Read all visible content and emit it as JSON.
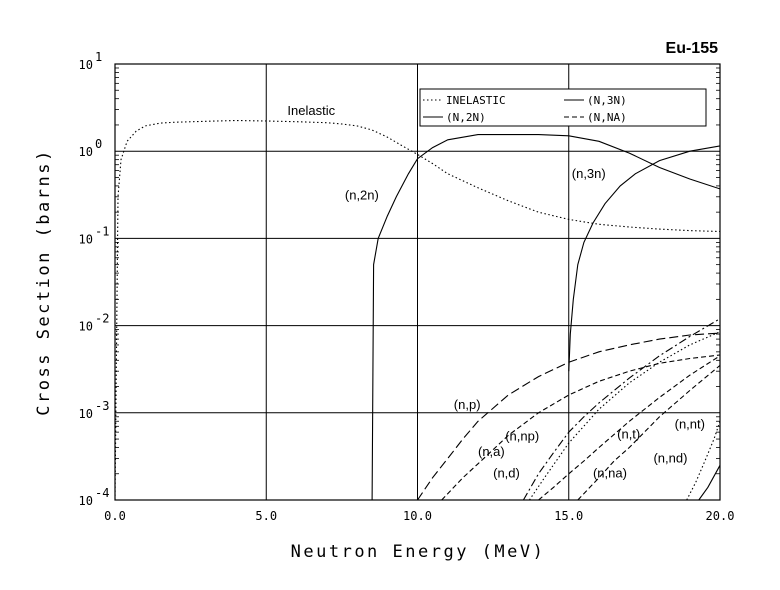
{
  "chart_data": {
    "type": "line",
    "title": "Eu-155",
    "xlabel": "Neutron Energy (MeV)",
    "ylabel": "Cross Section (barns)",
    "xlim": [
      0,
      20
    ],
    "ylim": [
      0.0001,
      10
    ],
    "yscale": "log",
    "grid": true,
    "x_ticks": [
      "0.0",
      "5.0",
      "10.0",
      "15.0",
      "20.0"
    ],
    "y_ticks": [
      {
        "base": "10",
        "exp": "1"
      },
      {
        "base": "10",
        "exp": "0"
      },
      {
        "base": "10",
        "exp": "-1"
      },
      {
        "base": "10",
        "exp": "-2"
      },
      {
        "base": "10",
        "exp": "-3"
      },
      {
        "base": "10",
        "exp": "-4"
      }
    ],
    "legend": {
      "position": "top-right",
      "entries": [
        "INELASTIC",
        "(N,3N)",
        "(N,2N)",
        "(N,NA)"
      ]
    },
    "series": [
      {
        "name": "INELASTIC",
        "style": "dotted",
        "x": [
          0.0,
          0.1,
          0.2,
          0.4,
          0.7,
          1.0,
          1.5,
          2.0,
          3.0,
          4.0,
          5.0,
          6.0,
          7.0,
          7.5,
          8.0,
          8.5,
          9.0,
          9.5,
          10.0,
          10.5,
          11.0,
          12.0,
          13.0,
          14.0,
          15.0,
          16.0,
          17.0,
          18.0,
          19.0,
          20.0
        ],
        "y": [
          0.0001,
          0.3,
          0.8,
          1.3,
          1.7,
          1.95,
          2.1,
          2.15,
          2.2,
          2.25,
          2.22,
          2.18,
          2.12,
          2.05,
          1.95,
          1.75,
          1.45,
          1.15,
          0.92,
          0.72,
          0.55,
          0.38,
          0.27,
          0.2,
          0.165,
          0.145,
          0.135,
          0.128,
          0.123,
          0.12
        ]
      },
      {
        "name": "(N,2N)",
        "style": "solid",
        "x": [
          8.5,
          8.55,
          8.7,
          9.0,
          9.3,
          9.7,
          10.0,
          10.5,
          11.0,
          12.0,
          13.0,
          14.0,
          15.0,
          16.0,
          17.0,
          18.0,
          19.0,
          20.0
        ],
        "y": [
          0.0001,
          0.05,
          0.1,
          0.18,
          0.3,
          0.55,
          0.82,
          1.1,
          1.35,
          1.55,
          1.55,
          1.55,
          1.5,
          1.3,
          0.95,
          0.65,
          0.48,
          0.37
        ]
      },
      {
        "name": "(N,3N)",
        "style": "solid",
        "x": [
          15.0,
          15.05,
          15.15,
          15.3,
          15.5,
          15.8,
          16.2,
          16.7,
          17.2,
          18.0,
          19.0,
          20.0
        ],
        "y": [
          0.003,
          0.008,
          0.02,
          0.05,
          0.09,
          0.15,
          0.25,
          0.4,
          0.55,
          0.78,
          1.0,
          1.15
        ]
      },
      {
        "name": "(N,NA)",
        "style": "dashed",
        "x": [
          14.0,
          14.5,
          15.0,
          15.5,
          16.0,
          17.0,
          18.0,
          19.0,
          20.0
        ],
        "y": [
          0.0001,
          0.00014,
          0.0002,
          0.00028,
          0.0004,
          0.0008,
          0.0015,
          0.0027,
          0.0045
        ]
      },
      {
        "name": "(n,p)",
        "style": "long-dash",
        "x": [
          10.0,
          10.5,
          11.0,
          11.5,
          12.0,
          13.0,
          14.0,
          15.0,
          16.0,
          17.0,
          18.0,
          19.0,
          20.0
        ],
        "y": [
          0.0001,
          0.00018,
          0.0003,
          0.0005,
          0.0008,
          0.0016,
          0.0026,
          0.0038,
          0.005,
          0.006,
          0.007,
          0.0078,
          0.0082
        ]
      },
      {
        "name": "(n,a)",
        "style": "dashed",
        "x": [
          10.8,
          11.5,
          12.0,
          13.0,
          14.0,
          15.0,
          16.0,
          17.0,
          18.0,
          19.0,
          20.0
        ],
        "y": [
          0.0001,
          0.00018,
          0.00026,
          0.00055,
          0.001,
          0.0016,
          0.0023,
          0.003,
          0.0037,
          0.0042,
          0.0046
        ]
      },
      {
        "name": "(n,np)",
        "style": "dash-dot",
        "x": [
          13.5,
          14.0,
          14.5,
          15.0,
          15.5,
          16.0,
          17.0,
          18.0,
          19.0,
          20.0
        ],
        "y": [
          0.0001,
          0.0002,
          0.00035,
          0.0006,
          0.0009,
          0.0013,
          0.0025,
          0.0045,
          0.0075,
          0.012
        ]
      },
      {
        "name": "(n,d)",
        "style": "dotted",
        "x": [
          13.7,
          14.2,
          15.0,
          16.0,
          17.0,
          18.0,
          19.0,
          20.0
        ],
        "y": [
          0.0001,
          0.00018,
          0.00045,
          0.0011,
          0.0022,
          0.0038,
          0.006,
          0.0085
        ]
      },
      {
        "name": "(n,t)",
        "style": "dashed",
        "x": [
          15.3,
          16.0,
          16.5,
          17.0,
          18.0,
          19.0,
          20.0
        ],
        "y": [
          0.0001,
          0.00018,
          0.00028,
          0.0004,
          0.0009,
          0.0018,
          0.0035
        ]
      },
      {
        "name": "(n,nt)",
        "style": "dotted",
        "x": [
          18.9,
          19.2,
          19.5,
          19.8,
          20.0
        ],
        "y": [
          0.0001,
          0.00016,
          0.00028,
          0.0005,
          0.0008
        ]
      },
      {
        "name": "(n,nd)",
        "style": "solid",
        "x": [
          19.3,
          19.6,
          20.0
        ],
        "y": [
          0.0001,
          0.00014,
          0.00025
        ]
      }
    ],
    "annotations": [
      {
        "text": "Inelastic",
        "x": 5.7,
        "y": 2.6
      },
      {
        "text": "(n,2n)",
        "x": 7.6,
        "y": 0.28
      },
      {
        "text": "(n,3n)",
        "x": 15.1,
        "y": 0.49
      },
      {
        "text": "(n,p)",
        "x": 11.2,
        "y": 0.0011
      },
      {
        "text": "(n,np)",
        "x": 12.9,
        "y": 0.00048
      },
      {
        "text": "(n,a)",
        "x": 12.0,
        "y": 0.00032
      },
      {
        "text": "(n,d)",
        "x": 12.5,
        "y": 0.00018
      },
      {
        "text": "(n,t)",
        "x": 16.6,
        "y": 0.00051
      },
      {
        "text": "(n,na)",
        "x": 15.8,
        "y": 0.00018
      },
      {
        "text": "(n,nt)",
        "x": 18.5,
        "y": 0.00066
      },
      {
        "text": "(n,nd)",
        "x": 17.8,
        "y": 0.00027
      }
    ]
  }
}
